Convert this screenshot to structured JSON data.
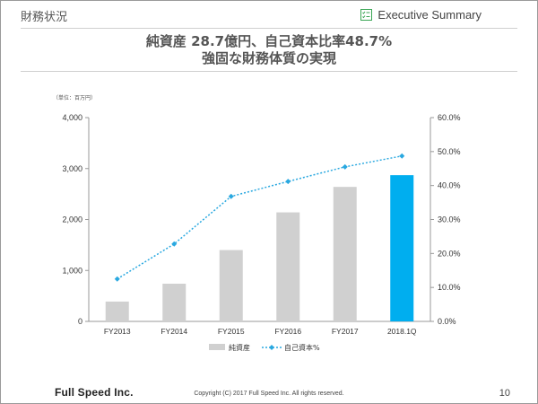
{
  "header": {
    "section_title": "財務状況",
    "badge_label": "Executive Summary",
    "badge_icon": "checklist-icon"
  },
  "headline": {
    "line1": "純資産 28.7億円、自己資本比率48.7%",
    "line2": "強固な財務体質の実現"
  },
  "chart_data": {
    "type": "bar",
    "categories": [
      "FY2013",
      "FY2014",
      "FY2015",
      "FY2016",
      "FY2017",
      "2018.1Q"
    ],
    "unit_label": "（単位：百万円）",
    "series": [
      {
        "name": "純資産",
        "type": "bar",
        "axis": "left",
        "values": [
          390,
          740,
          1400,
          2140,
          2640,
          2870
        ],
        "colors": [
          "#d0d0d0",
          "#d0d0d0",
          "#d0d0d0",
          "#d0d0d0",
          "#d0d0d0",
          "#00aeef"
        ]
      },
      {
        "name": "自己資本%",
        "type": "line",
        "axis": "right",
        "values": [
          12.5,
          22.8,
          36.8,
          41.2,
          45.5,
          48.7
        ],
        "color": "#29a8e0"
      }
    ],
    "y_left": {
      "ticks": [
        "0",
        "1,000",
        "2,000",
        "3,000",
        "4,000"
      ],
      "ylim": [
        0,
        4000
      ]
    },
    "y_right": {
      "ticks": [
        "0.0%",
        "10.0%",
        "20.0%",
        "30.0%",
        "40.0%",
        "50.0%",
        "60.0%"
      ],
      "ylim": [
        0,
        60
      ]
    },
    "grid": false,
    "legend_position": "bottom-center"
  },
  "footer": {
    "logo": "Full Speed Inc.",
    "copyright": "Copyright (C) 2017 Full Speed Inc. All rights reserved.",
    "page": "10"
  }
}
